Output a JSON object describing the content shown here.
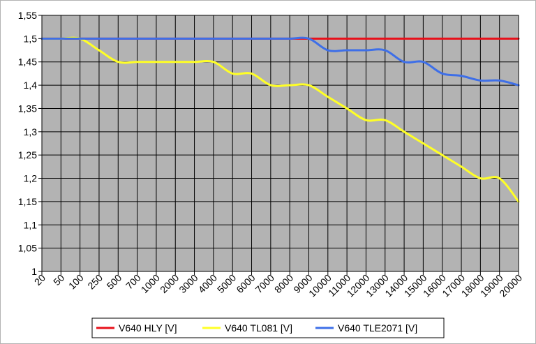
{
  "chart_data": {
    "type": "line",
    "title": "",
    "xlabel": "",
    "ylabel": "",
    "categories": [
      "20",
      "50",
      "100",
      "250",
      "500",
      "700",
      "1000",
      "2000",
      "3000",
      "4000",
      "5000",
      "6000",
      "7000",
      "8000",
      "9000",
      "10000",
      "11000",
      "12000",
      "13000",
      "14000",
      "15000",
      "16000",
      "17000",
      "18000",
      "19000",
      "20000"
    ],
    "yticks": [
      "1",
      "1,05",
      "1,1",
      "1,15",
      "1,2",
      "1,25",
      "1,3",
      "1,35",
      "1,4",
      "1,45",
      "1,5",
      "1,55"
    ],
    "ylim": [
      1,
      1.55
    ],
    "grid": true,
    "legend_position": "bottom",
    "series": [
      {
        "name": "V640 HLY [V]",
        "color": "#e8101a",
        "values": [
          1.5,
          1.5,
          1.5,
          1.5,
          1.5,
          1.5,
          1.5,
          1.5,
          1.5,
          1.5,
          1.5,
          1.5,
          1.5,
          1.5,
          1.5,
          1.5,
          1.5,
          1.5,
          1.5,
          1.5,
          1.5,
          1.5,
          1.5,
          1.5,
          1.5,
          1.5
        ]
      },
      {
        "name": "V640 TL081 [V]",
        "color": "#ffff26",
        "values": [
          1.5,
          1.5,
          1.5,
          1.475,
          1.45,
          1.45,
          1.45,
          1.45,
          1.45,
          1.45,
          1.425,
          1.425,
          1.4,
          1.4,
          1.4,
          1.375,
          1.35,
          1.325,
          1.325,
          1.3,
          1.275,
          1.25,
          1.225,
          1.2,
          1.2,
          1.15
        ]
      },
      {
        "name": "V640 TLE2071 [V]",
        "color": "#3e6fe8",
        "values": [
          1.5,
          1.5,
          1.5,
          1.5,
          1.5,
          1.5,
          1.5,
          1.5,
          1.5,
          1.5,
          1.5,
          1.5,
          1.5,
          1.5,
          1.5,
          1.475,
          1.475,
          1.475,
          1.475,
          1.45,
          1.45,
          1.425,
          1.42,
          1.41,
          1.41,
          1.4
        ]
      }
    ]
  }
}
